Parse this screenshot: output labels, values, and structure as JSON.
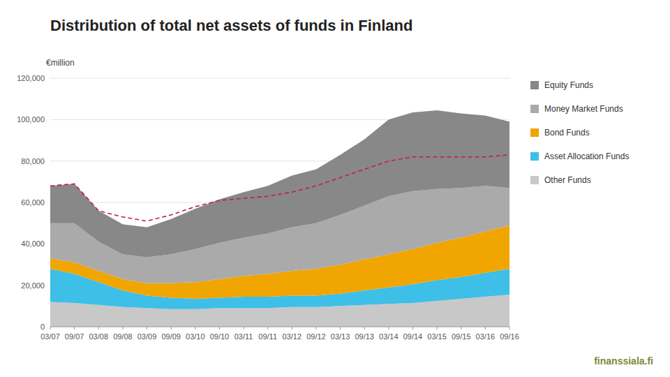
{
  "chart_data": {
    "type": "area",
    "stacked": true,
    "grid": true,
    "legend": "right",
    "title": "Distribution of total net assets of funds in Finland",
    "ylabel": "€million",
    "annotations": [
      "finanssiala.fi"
    ],
    "categories": [
      "03/07",
      "09/07",
      "03/08",
      "09/08",
      "03/09",
      "09/09",
      "03/10",
      "09/10",
      "03/11",
      "09/11",
      "03/12",
      "09/12",
      "03/13",
      "09/13",
      "03/14",
      "09/14",
      "03/15",
      "09/15",
      "03/16",
      "09/16"
    ],
    "ylim": [
      0,
      120000
    ],
    "yticks": [
      0,
      {
        "value": 20000,
        "label": "20,000"
      },
      {
        "value": 40000,
        "label": "40,000"
      },
      {
        "value": 60000,
        "label": "60,000"
      },
      {
        "value": 80000,
        "label": "80,000"
      },
      {
        "value": 100000,
        "label": "100,000"
      },
      {
        "value": 120000,
        "label": "120,000"
      }
    ],
    "series": [
      {
        "name": "Other Funds",
        "color": "#c8c8c8",
        "values": [
          12000,
          11500,
          10500,
          9500,
          9000,
          8500,
          8500,
          9000,
          9000,
          9000,
          9500,
          9500,
          10000,
          10500,
          11000,
          11500,
          12500,
          13500,
          14500,
          15500
        ]
      },
      {
        "name": "Asset Allocation Funds",
        "color": "#3dbfe8",
        "values": [
          16000,
          14000,
          11000,
          8000,
          6000,
          5500,
          5000,
          5000,
          5500,
          5500,
          5500,
          5500,
          6000,
          7000,
          8000,
          9000,
          10000,
          10500,
          11500,
          12500
        ]
      },
      {
        "name": "Bond Funds",
        "color": "#f0a500",
        "values": [
          5000,
          5500,
          5500,
          5500,
          6000,
          7000,
          8000,
          9000,
          10000,
          11000,
          12000,
          13000,
          14000,
          15000,
          16000,
          17000,
          18000,
          19000,
          20000,
          21000
        ]
      },
      {
        "name": "Money Market Funds",
        "color": "#aaaaaa",
        "values": [
          17000,
          19000,
          14000,
          12000,
          12500,
          14000,
          16000,
          17500,
          18500,
          19500,
          21000,
          22000,
          24000,
          26000,
          28000,
          28000,
          26000,
          24000,
          22000,
          18000
        ]
      },
      {
        "name": "Equity Funds",
        "color": "#888888",
        "values": [
          18000,
          19000,
          15000,
          14500,
          14500,
          17000,
          19500,
          21000,
          22000,
          23000,
          25000,
          26000,
          29000,
          32000,
          37000,
          38000,
          38000,
          36000,
          34000,
          32000
        ]
      },
      {
        "type": "line",
        "line_style": "dashed",
        "color": "#c2185b",
        "values": [
          68000,
          69000,
          56000,
          53000,
          51000,
          54000,
          58000,
          61000,
          62000,
          63000,
          65000,
          68000,
          72000,
          76000,
          80000,
          82000,
          82000,
          82000,
          82000,
          83000
        ]
      }
    ]
  }
}
